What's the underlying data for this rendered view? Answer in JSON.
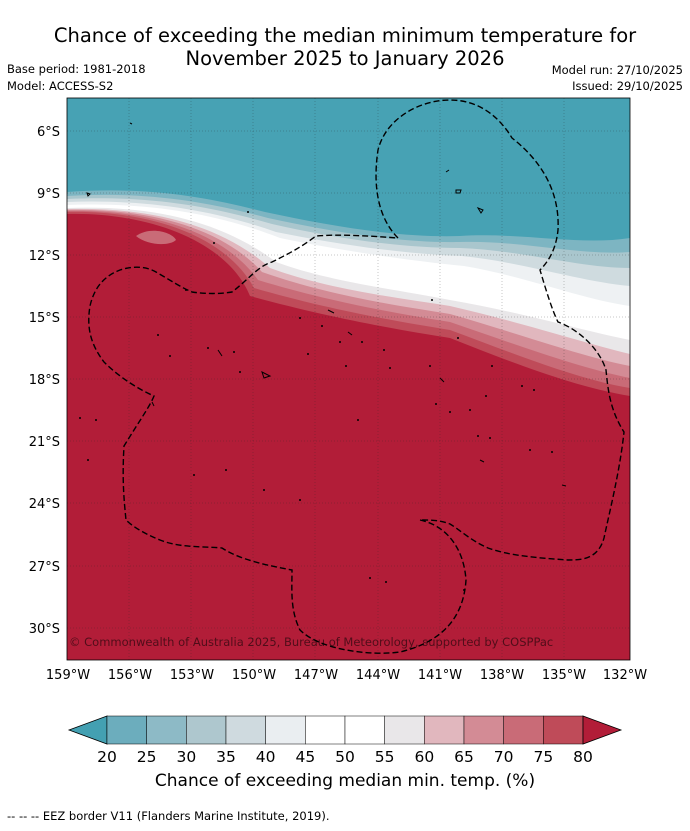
{
  "title_line1": "Chance of exceeding the median minimum temperature for",
  "title_line2": "November 2025 to January 2026",
  "base_period": "Base period: 1981-2018",
  "model": "Model: ACCESS-S2",
  "model_run": "Model run: 27/10/2025",
  "issued": "Issued: 29/10/2025",
  "copyright": "© Commonwealth of Australia 2025, Bureau of Meteorology, supported by COSPPac",
  "lat_labels": [
    "6°S",
    "9°S",
    "12°S",
    "15°S",
    "18°S",
    "21°S",
    "24°S",
    "27°S",
    "30°S"
  ],
  "lon_labels": [
    "159°W",
    "156°W",
    "153°W",
    "150°W",
    "147°W",
    "144°W",
    "141°W",
    "138°W",
    "135°W",
    "132°W"
  ],
  "colorbar": {
    "ticks": [
      "20",
      "25",
      "30",
      "35",
      "40",
      "45",
      "50",
      "55",
      "60",
      "65",
      "70",
      "75",
      "80"
    ],
    "colors": [
      "#43a0b2",
      "#6cadbd",
      "#8dbac6",
      "#aec7ce",
      "#cfdadf",
      "#eaeef1",
      "#ffffff",
      "#ffffff",
      "#e9e7e9",
      "#e1b7be",
      "#d38b95",
      "#c96b77",
      "#bf4b59",
      "#b21d38"
    ],
    "label": "Chance of exceeding median min. temp. (%)"
  },
  "footnote": "--  --  -- EEZ border V11 (Flanders Marine Institute, 2019)."
}
